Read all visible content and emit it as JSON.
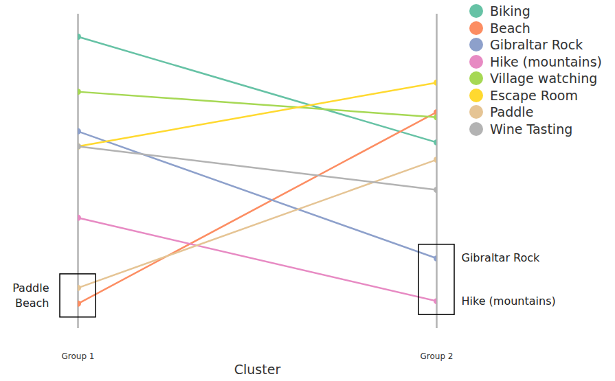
{
  "chart_data": {
    "type": "slope",
    "x_label": "Cluster",
    "categories": [
      "Group 1",
      "Group 2"
    ],
    "series": [
      {
        "name": "Biking",
        "color": "#66c2a5",
        "values": [
          9.28,
          5.92
        ]
      },
      {
        "name": "Beach",
        "color": "#fc8d62",
        "values": [
          0.79,
          6.88
        ]
      },
      {
        "name": "Gibraltar Rock",
        "color": "#8da0cb",
        "values": [
          6.27,
          2.23
        ]
      },
      {
        "name": "Hike (mountains)",
        "color": "#e78ac3",
        "values": [
          3.52,
          0.87
        ]
      },
      {
        "name": "Village watching",
        "color": "#a6d854",
        "values": [
          7.53,
          6.72
        ]
      },
      {
        "name": "Escape Room",
        "color": "#ffd92f",
        "values": [
          5.79,
          7.82
        ]
      },
      {
        "name": "Paddle",
        "color": "#e5c494",
        "values": [
          1.29,
          5.37
        ]
      },
      {
        "name": "Wine Tasting",
        "color": "#b3b3b3",
        "values": [
          5.79,
          4.41
        ]
      }
    ],
    "ylim": [
      0,
      10
    ],
    "tick_labels": "x",
    "legend": "upper right",
    "annotations": [
      {
        "category": "Group 1",
        "labels": [
          "Paddle",
          "Beach"
        ]
      },
      {
        "category": "Group 2",
        "labels": [
          "Gibraltar Rock",
          "Hike (mountains)"
        ]
      }
    ]
  }
}
